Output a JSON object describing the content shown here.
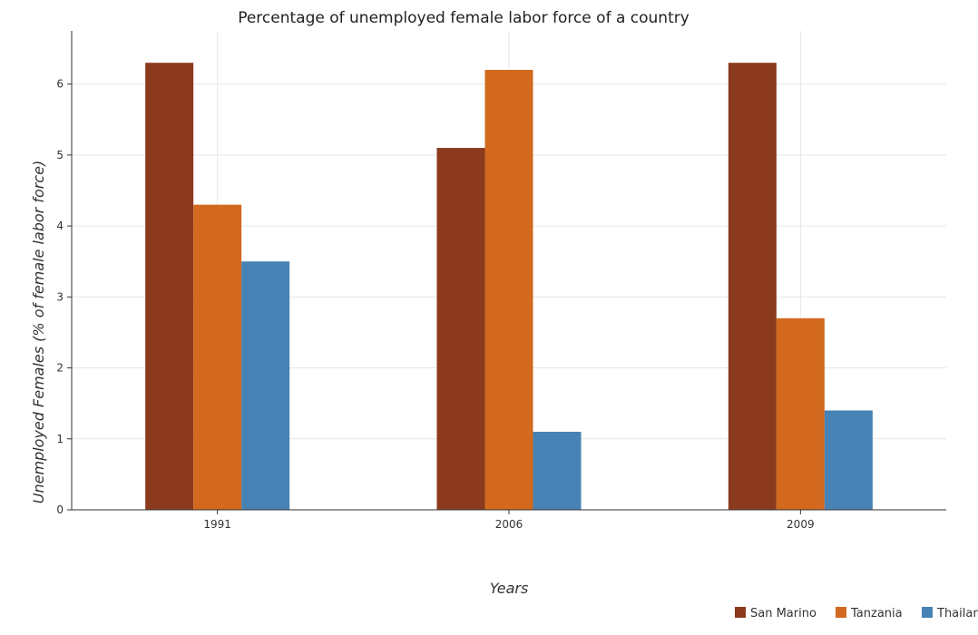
{
  "chart_data": {
    "type": "bar",
    "title": "Percentage of unemployed female labor force of a country",
    "xlabel": "Years",
    "ylabel": "Unemployed Females (% of female labor force)",
    "categories": [
      "1991",
      "2006",
      "2009"
    ],
    "series": [
      {
        "name": "San Marino",
        "color": "#8b3a1e",
        "values": [
          6.3,
          5.1,
          6.3
        ]
      },
      {
        "name": "Tanzania",
        "color": "#d2691e",
        "values": [
          4.3,
          6.2,
          2.7
        ]
      },
      {
        "name": "Thailand",
        "color": "#4682b4",
        "values": [
          3.5,
          1.1,
          1.4
        ]
      }
    ],
    "ylim": [
      0,
      6.75
    ],
    "yticks": [
      "0",
      "1",
      "2",
      "3",
      "4",
      "5",
      "6"
    ],
    "grid": true,
    "legend": "bottom-right"
  }
}
